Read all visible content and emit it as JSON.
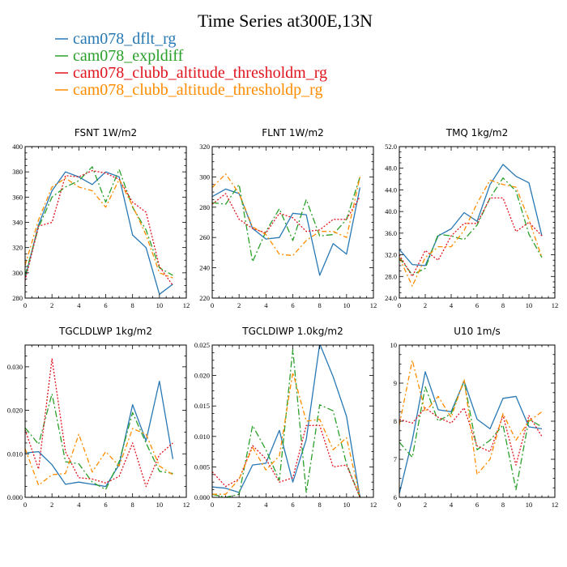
{
  "figure": {
    "title": "Time Series at300E,13N"
  },
  "legend": [
    {
      "label": "cam078_dflt_rg",
      "color": "#2878b4",
      "dash": "none"
    },
    {
      "label": "cam078_expldiff",
      "color": "#2aa02a",
      "dash": "8 3 2 3"
    },
    {
      "label": "cam078_clubb_altitude_thresholdm_rg",
      "color": "#e0141e",
      "dash": "2 2"
    },
    {
      "label": "cam078_clubb_altitude_thresholdp_rg",
      "color": "#ff8c00",
      "dash": "6 3 2 3"
    }
  ],
  "chart_data": [
    {
      "type": "line",
      "title": "FSNT   1W/m2",
      "x": [
        0,
        1,
        2,
        3,
        4,
        5,
        6,
        7,
        8,
        9,
        10,
        11
      ],
      "xlim": [
        0,
        12
      ],
      "xticks": [
        "0",
        "2",
        "4",
        "6",
        "8",
        "10",
        "12"
      ],
      "xtick_values": [
        0,
        2,
        4,
        6,
        8,
        10,
        12
      ],
      "ylim": [
        280,
        400
      ],
      "yticks": [
        "280",
        "300",
        "320",
        "340",
        "360",
        "380",
        "400"
      ],
      "ytick_values": [
        280,
        300,
        320,
        340,
        360,
        380,
        400
      ],
      "series": [
        {
          "name": "cam078_dflt_rg",
          "values": [
            296,
            338,
            365,
            380,
            376,
            370,
            380,
            376,
            330,
            320,
            283,
            291
          ]
        },
        {
          "name": "cam078_expldiff",
          "values": [
            298,
            336,
            360,
            368,
            373,
            384,
            356,
            382,
            352,
            334,
            304,
            298
          ]
        },
        {
          "name": "cam078_clubb_altitude_thresholdm_rg",
          "values": [
            294,
            337,
            340,
            377,
            376,
            381,
            379,
            374,
            356,
            348,
            305,
            290
          ]
        },
        {
          "name": "cam078_clubb_altitude_thresholdp_rg",
          "values": [
            306,
            342,
            368,
            375,
            368,
            365,
            352,
            374,
            353,
            330,
            300,
            296
          ]
        }
      ]
    },
    {
      "type": "line",
      "title": "FLNT   1W/m2",
      "x": [
        0,
        1,
        2,
        3,
        4,
        5,
        6,
        7,
        8,
        9,
        10,
        11
      ],
      "xlim": [
        0,
        12
      ],
      "xticks": [
        "0",
        "2",
        "4",
        "6",
        "8",
        "10",
        "12"
      ],
      "xtick_values": [
        0,
        2,
        4,
        6,
        8,
        10,
        12
      ],
      "ylim": [
        220,
        320
      ],
      "yticks": [
        "220",
        "240",
        "260",
        "280",
        "300",
        "320"
      ],
      "ytick_values": [
        220,
        240,
        260,
        280,
        300,
        320
      ],
      "series": [
        {
          "name": "cam078_dflt_rg",
          "values": [
            287,
            292,
            289,
            266,
            259,
            260,
            276,
            275,
            235,
            256,
            249,
            293
          ]
        },
        {
          "name": "cam078_expldiff",
          "values": [
            283,
            282,
            295,
            244,
            264,
            279,
            258,
            285,
            261,
            262,
            272,
            300
          ]
        },
        {
          "name": "cam078_clubb_altitude_thresholdm_rg",
          "values": [
            282,
            289,
            272,
            266,
            263,
            276,
            273,
            264,
            265,
            272,
            272,
            287
          ]
        },
        {
          "name": "cam078_clubb_altitude_thresholdp_rg",
          "values": [
            293,
            302,
            289,
            267,
            262,
            249,
            248,
            258,
            264,
            264,
            260,
            300
          ]
        }
      ]
    },
    {
      "type": "line",
      "title": "TMQ   1kg/m2",
      "x": [
        0,
        1,
        2,
        3,
        4,
        5,
        6,
        7,
        8,
        9,
        10,
        11
      ],
      "xlim": [
        0,
        12
      ],
      "xticks": [
        "0",
        "2",
        "4",
        "6",
        "8",
        "10",
        "12"
      ],
      "xtick_values": [
        0,
        2,
        4,
        6,
        8,
        10,
        12
      ],
      "ylim": [
        24,
        52
      ],
      "yticks": [
        "24.0",
        "28.0",
        "32.0",
        "36.0",
        "40.0",
        "44.0",
        "48.0",
        "52.0"
      ],
      "ytick_values": [
        24,
        28,
        32,
        36,
        40,
        44,
        48,
        52
      ],
      "series": [
        {
          "name": "cam078_dflt_rg",
          "values": [
            33,
            30.2,
            30,
            35.5,
            36.8,
            39.8,
            38.2,
            45,
            48.7,
            46.5,
            45.3,
            35.5
          ]
        },
        {
          "name": "cam078_expldiff",
          "values": [
            31.5,
            28.3,
            29.5,
            35.8,
            35.5,
            34.8,
            37.5,
            42.5,
            46.2,
            43.8,
            35.8,
            31.5
          ]
        },
        {
          "name": "cam078_clubb_altitude_thresholdm_rg",
          "values": [
            32,
            28,
            32.8,
            31,
            35.5,
            37.8,
            37.8,
            42.5,
            42.5,
            36.3,
            38,
            35.5
          ]
        },
        {
          "name": "cam078_clubb_altitude_thresholdp_rg",
          "values": [
            31.5,
            26.2,
            31.5,
            33.5,
            33.5,
            36.5,
            41.5,
            45.8,
            45,
            44.5,
            38.5,
            31.5
          ]
        }
      ]
    },
    {
      "type": "line",
      "title": "TGCLDLWP   1kg/m2",
      "x": [
        0,
        1,
        2,
        3,
        4,
        5,
        6,
        7,
        8,
        9,
        10,
        11
      ],
      "xlim": [
        0,
        12
      ],
      "xticks": [
        "0",
        "2",
        "4",
        "6",
        "8",
        "10",
        "12"
      ],
      "xtick_values": [
        0,
        2,
        4,
        6,
        8,
        10,
        12
      ],
      "ylim": [
        0,
        0.035
      ],
      "yticks": [
        "0.000",
        "0.010",
        "0.020",
        "0.030"
      ],
      "ytick_values": [
        0,
        0.01,
        0.02,
        0.03
      ],
      "series": [
        {
          "name": "cam078_dflt_rg",
          "values": [
            0.0102,
            0.0105,
            0.0075,
            0.003,
            0.0035,
            0.003,
            0.0025,
            0.0075,
            0.0213,
            0.013,
            0.0267,
            0.0088
          ]
        },
        {
          "name": "cam078_expldiff",
          "values": [
            0.016,
            0.0122,
            0.0238,
            0.0082,
            0.0077,
            0.0035,
            0.0018,
            0.0082,
            0.0195,
            0.0125,
            0.006,
            0.0055
          ]
        },
        {
          "name": "cam078_clubb_altitude_thresholdm_rg",
          "values": [
            0.0155,
            0.0065,
            0.0318,
            0.0105,
            0.0045,
            0.0042,
            0.0033,
            0.0048,
            0.0125,
            0.0025,
            0.0098,
            0.0125
          ]
        },
        {
          "name": "cam078_clubb_altitude_thresholdp_rg",
          "values": [
            0.0112,
            0.0028,
            0.0052,
            0.0055,
            0.0145,
            0.0058,
            0.0105,
            0.0072,
            0.0158,
            0.0145,
            0.0072,
            0.0052
          ]
        }
      ]
    },
    {
      "type": "line",
      "title": "TGCLDIWP   1.0kg/m2",
      "x": [
        0,
        1,
        2,
        3,
        4,
        5,
        6,
        7,
        8,
        9,
        10,
        11
      ],
      "xlim": [
        0,
        12
      ],
      "xticks": [
        "0",
        "2",
        "4",
        "6",
        "8",
        "10",
        "12"
      ],
      "xtick_values": [
        0,
        2,
        4,
        6,
        8,
        10,
        12
      ],
      "ylim": [
        0,
        0.025
      ],
      "yticks": [
        "0.000",
        "0.005",
        "0.010",
        "0.015",
        "0.020",
        "0.025"
      ],
      "ytick_values": [
        0,
        0.005,
        0.01,
        0.015,
        0.02,
        0.025
      ],
      "series": [
        {
          "name": "cam078_dflt_rg",
          "values": [
            0.0017,
            0.0015,
            0.0008,
            0.0053,
            0.0056,
            0.011,
            0.0025,
            0.0095,
            0.0252,
            0.0198,
            0.0133,
            0
          ]
        },
        {
          "name": "cam078_expldiff",
          "values": [
            0.0005,
            0,
            0.0005,
            0.0118,
            0.0078,
            0.0028,
            0.0243,
            0.0008,
            0.0152,
            0.0142,
            0.0055,
            0
          ]
        },
        {
          "name": "cam078_clubb_altitude_thresholdm_rg",
          "values": [
            0.0042,
            0.0018,
            0.003,
            0.0085,
            0.0063,
            0.0025,
            0.0032,
            0.0118,
            0.0118,
            0.005,
            0.0053,
            0
          ]
        },
        {
          "name": "cam078_clubb_altitude_thresholdp_rg",
          "values": [
            0.0005,
            0.0005,
            0.003,
            0.0082,
            0.0045,
            0.0068,
            0.0205,
            0.0125,
            0.0128,
            0.0078,
            0.0098,
            0
          ]
        }
      ]
    },
    {
      "type": "line",
      "title": "U10   1m/s",
      "x": [
        0,
        1,
        2,
        3,
        4,
        5,
        6,
        7,
        8,
        9,
        10,
        11
      ],
      "xlim": [
        0,
        12
      ],
      "xticks": [
        "0",
        "2",
        "4",
        "6",
        "8",
        "10",
        "12"
      ],
      "xtick_values": [
        0,
        2,
        4,
        6,
        8,
        10,
        12
      ],
      "ylim": [
        6,
        10
      ],
      "yticks": [
        "6",
        "7",
        "8",
        "9",
        "10"
      ],
      "ytick_values": [
        6,
        7,
        8,
        9,
        10
      ],
      "series": [
        {
          "name": "cam078_dflt_rg",
          "values": [
            6.1,
            7.5,
            9.3,
            8.3,
            8.25,
            9.05,
            8.05,
            7.8,
            8.6,
            8.65,
            7.85,
            7.8
          ]
        },
        {
          "name": "cam078_expldiff",
          "values": [
            7.45,
            7.05,
            8.9,
            8,
            8.2,
            9.05,
            7.25,
            7.5,
            7.9,
            6.2,
            8.05,
            7.85
          ]
        },
        {
          "name": "cam078_clubb_altitude_thresholdm_rg",
          "values": [
            8.05,
            7.95,
            8.35,
            8.1,
            7.95,
            8.35,
            7.35,
            7.2,
            8.15,
            6.85,
            8.15,
            7.6
          ]
        },
        {
          "name": "cam078_clubb_altitude_thresholdp_rg",
          "values": [
            7.9,
            9.6,
            8.25,
            8.65,
            8.1,
            9.1,
            6.6,
            7.0,
            8.2,
            7.5,
            8.0,
            8.25
          ]
        }
      ]
    }
  ]
}
